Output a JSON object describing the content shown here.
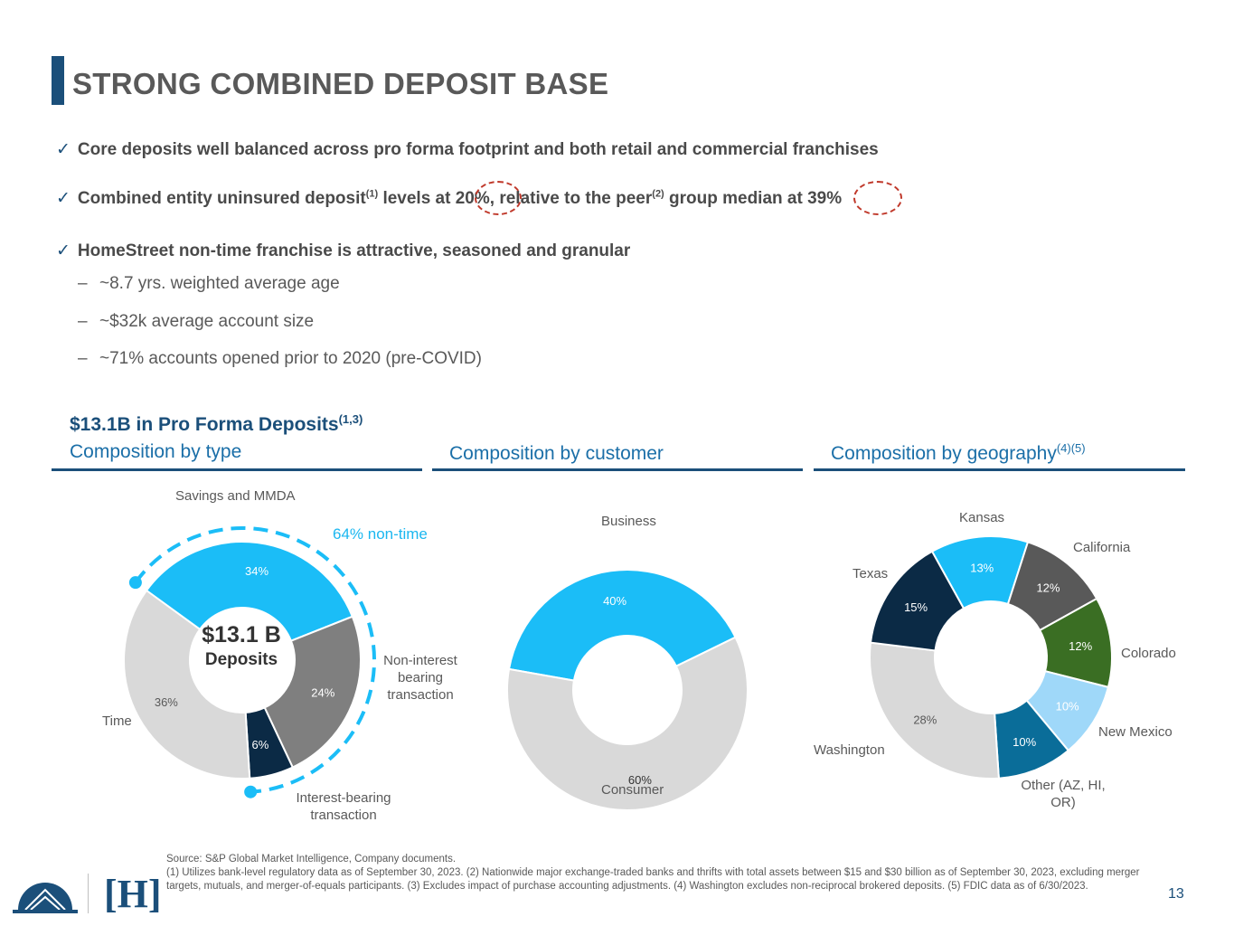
{
  "title": "STRONG COMBINED DEPOSIT BASE",
  "bullets": {
    "b1": "Core deposits well balanced across pro forma footprint and both retail and commercial franchises",
    "b2_part1": "Combined entity uninsured deposit",
    "b2_sup1": "(1)",
    "b2_part2": " levels at ",
    "b2_val1": "20%",
    "b2_part3": ", relative to the peer",
    "b2_sup2": "(2)",
    "b2_part4": " group median at ",
    "b2_val2": "39%",
    "b3": "HomeStreet non-time franchise is attractive, seasoned and granular",
    "check": "✓"
  },
  "subbullets": {
    "dash": "–",
    "s1": "~8.7 yrs. weighted average age",
    "s2": "~$32k average account size",
    "s3": "~71% accounts opened prior to 2020 (pre-COVID)"
  },
  "deposits_title": "$13.1B in Pro Forma Deposits",
  "deposits_title_sup": "(1,3)",
  "sections": {
    "type": "Composition by type",
    "customer": "Composition by customer",
    "geography": "Composition by geography",
    "geography_sup": "(4)(5)"
  },
  "chart1_extra": {
    "nontime": "64% non-time",
    "center_value": "$13.1 B",
    "center_label": "Deposits"
  },
  "chart_data": [
    {
      "type": "pie",
      "title": "Composition by type",
      "categories": [
        "Savings and MMDA",
        "Non-interest bearing transaction",
        "Interest-bearing transaction",
        "Time"
      ],
      "values": [
        34,
        24,
        6,
        36
      ],
      "value_labels": [
        "34%",
        "24%",
        "6%",
        "36%"
      ],
      "label_texts": [
        "Savings and MMDA",
        "Non-interest bearing transaction",
        "Interest-bearing transaction",
        "Time"
      ],
      "colors": [
        "#1bbdf7",
        "#7f7f7f",
        "#0b2a45",
        "#d9d9d9"
      ]
    },
    {
      "type": "pie",
      "title": "Composition by customer",
      "categories": [
        "Business",
        "Consumer"
      ],
      "values": [
        40,
        60
      ],
      "value_labels": [
        "40%",
        "60%"
      ],
      "label_texts": [
        "Business",
        "Consumer"
      ],
      "colors": [
        "#1bbdf7",
        "#d9d9d9"
      ]
    },
    {
      "type": "pie",
      "title": "Composition by geography",
      "categories": [
        "Kansas",
        "California",
        "Colorado",
        "New Mexico",
        "Other (AZ, HI, OR)",
        "Washington",
        "Texas"
      ],
      "values": [
        13,
        12,
        12,
        10,
        10,
        28,
        15
      ],
      "value_labels": [
        "13%",
        "12%",
        "12%",
        "10%",
        "10%",
        "28%",
        "15%"
      ],
      "label_texts": [
        "Kansas",
        "California",
        "Colorado",
        "New Mexico",
        "Other (AZ, HI, OR)",
        "Washington",
        "Texas"
      ],
      "colors": [
        "#1bbdf7",
        "#595959",
        "#3a6e23",
        "#9fd8f9",
        "#0a6d99",
        "#d9d9d9",
        "#0b2a45"
      ]
    }
  ],
  "footnote": {
    "l1": "Source: S&P Global Market Intelligence, Company documents.",
    "l2": "(1) Utilizes bank-level regulatory data as of September 30, 2023. (2) Nationwide major exchange-traded banks and thrifts with total assets between $15 and $30 billion as of September 30, 2023, excluding merger targets, mutuals, and merger-of-equals participants. (3) Excludes impact of purchase accounting adjustments. (4) Washington excludes non-reciprocal brokered deposits. (5) FDIC data as of 6/30/2023."
  },
  "page_number": "13",
  "logo_text": "[H]"
}
